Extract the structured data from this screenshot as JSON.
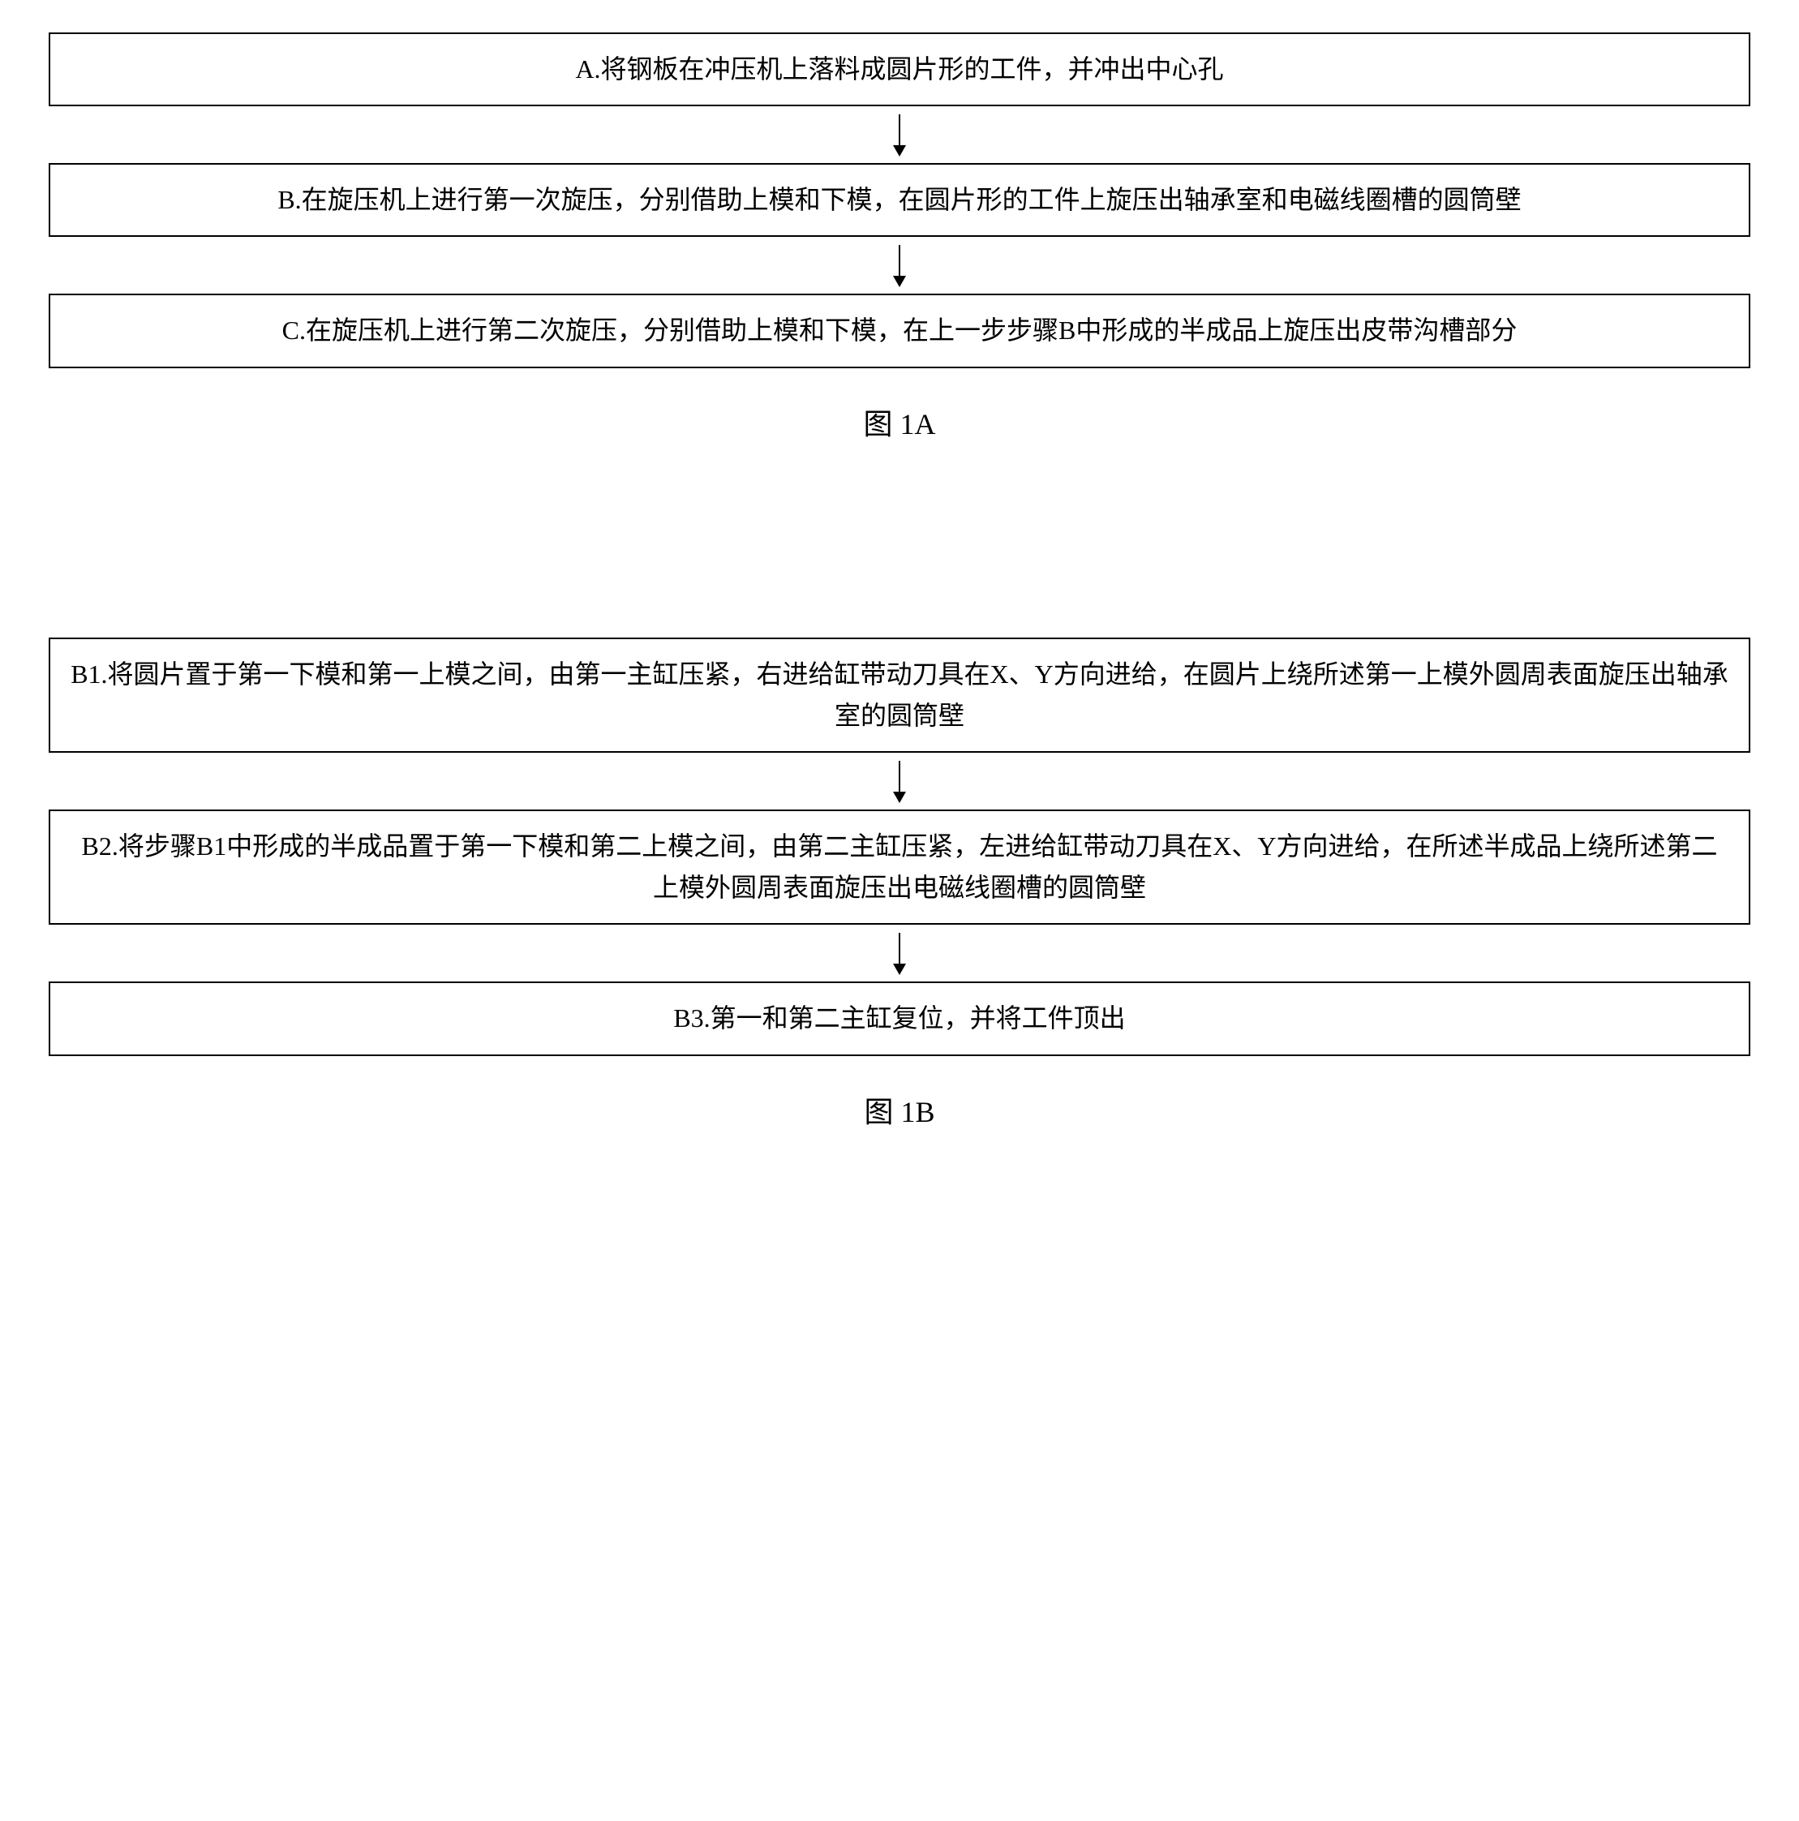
{
  "figure1A": {
    "label": "图 1A",
    "boxes": [
      {
        "id": "A",
        "text": "A.将钢板在冲压机上落料成圆片形的工件，并冲出中心孔"
      },
      {
        "id": "B",
        "text": "B.在旋压机上进行第一次旋压，分别借助上模和下模，在圆片形的工件上旋压出轴承室和电磁线圈槽的圆筒壁"
      },
      {
        "id": "C",
        "text": "C.在旋压机上进行第二次旋压，分别借助上模和下模，在上一步步骤B中形成的半成品上旋压出皮带沟槽部分"
      }
    ]
  },
  "figure1B": {
    "label": "图 1B",
    "boxes": [
      {
        "id": "B1",
        "text": "B1.将圆片置于第一下模和第一上模之间，由第一主缸压紧，右进给缸带动刀具在X、Y方向进给，在圆片上绕所述第一上模外圆周表面旋压出轴承室的圆筒壁"
      },
      {
        "id": "B2",
        "text": "B2.将步骤B1中形成的半成品置于第一下模和第二上模之间，由第二主缸压紧，左进给缸带动刀具在X、Y方向进给，在所述半成品上绕所述第二上模外圆周表面旋压出电磁线圈槽的圆筒壁"
      },
      {
        "id": "B3",
        "text": "B3.第一和第二主缸复位，并将工件顶出"
      }
    ]
  },
  "styles": {
    "font_family": "SimSun",
    "font_size_box": 32,
    "font_size_label": 36,
    "border_color": "#000000",
    "border_width": 2,
    "background_color": "#ffffff",
    "arrow_color": "#000000",
    "line_height": 1.6
  },
  "diagram_type": "flowchart"
}
